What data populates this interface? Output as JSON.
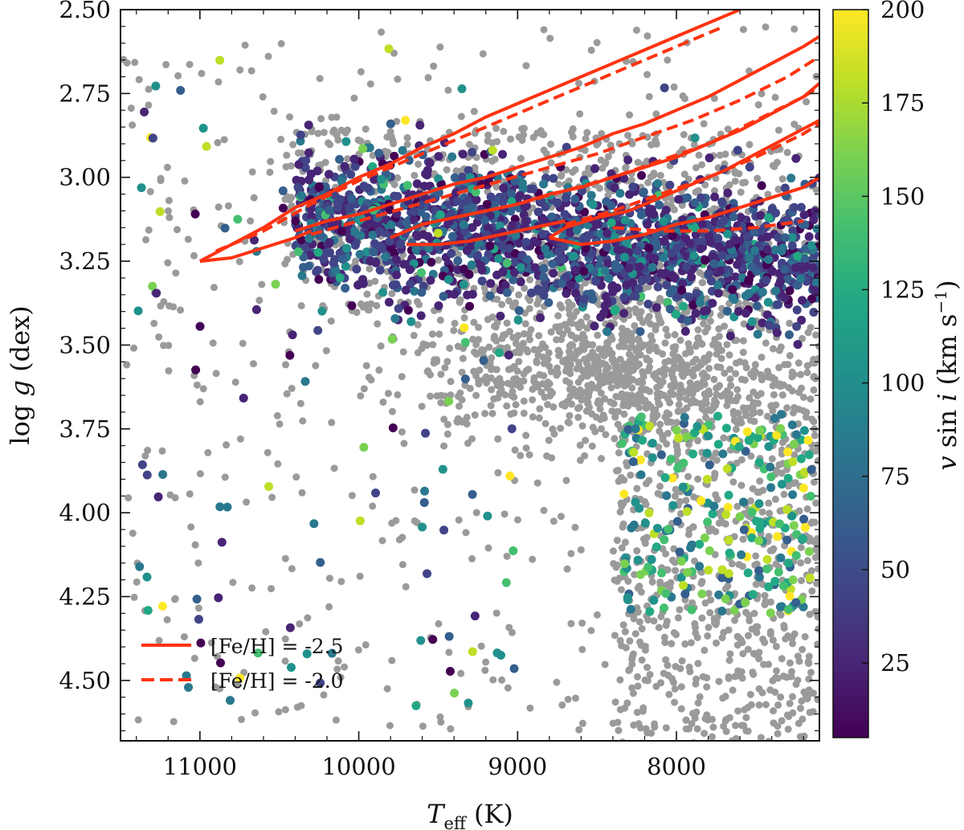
{
  "chart_data": {
    "type": "scatter",
    "xlabel": "T_eff (K)",
    "ylabel": "log g (dex)",
    "xlim": [
      11500,
      7100
    ],
    "ylim": [
      4.68,
      2.5
    ],
    "x_inverted": true,
    "y_inverted": true,
    "xticks": [
      11000,
      10000,
      9000,
      8000
    ],
    "xtick_labels": [
      "11000",
      "10000",
      "9000",
      "8000"
    ],
    "yticks": [
      2.5,
      2.75,
      3.0,
      3.25,
      3.5,
      3.75,
      4.0,
      4.25,
      4.5
    ],
    "ytick_labels": [
      "2.50",
      "2.75",
      "3.00",
      "3.25",
      "3.50",
      "3.75",
      "4.00",
      "4.25",
      "4.50"
    ],
    "colorbar": {
      "label": "v sin i (km s^-1)",
      "range": [
        5,
        200
      ],
      "ticks": [
        25,
        50,
        75,
        100,
        125,
        150,
        175,
        200
      ],
      "tick_labels": [
        "25",
        "50",
        "75",
        "100",
        "125",
        "150",
        "175",
        "200"
      ],
      "colormap": "viridis"
    },
    "colors": {
      "background_points": "#9a9a9a",
      "isochrone": "#ff3311"
    },
    "legend": {
      "placement": "bottom-left",
      "entries": [
        {
          "label": "[Fe/H] = -2.5",
          "style": "solid"
        },
        {
          "label": "[Fe/H] = -2.0",
          "style": "dashed"
        }
      ]
    },
    "series": [
      {
        "name": "isochrone [Fe/H] = -2.5 (1)",
        "style": "solid",
        "x": [
          11000,
          10800,
          10600,
          10400,
          10200,
          10000,
          9800,
          9600,
          9400,
          9200,
          9000,
          8800,
          8600,
          8400,
          8200,
          8000,
          7900,
          7800,
          7700,
          7600
        ],
        "y": [
          3.25,
          3.2,
          3.15,
          3.09,
          3.05,
          3.0,
          2.96,
          2.91,
          2.87,
          2.82,
          2.78,
          2.74,
          2.7,
          2.66,
          2.62,
          2.58,
          2.56,
          2.54,
          2.52,
          2.5
        ]
      },
      {
        "name": "isochrone [Fe/H] = -2.5 (1) lower",
        "style": "solid",
        "x": [
          11000,
          10800,
          10600,
          10400,
          10300
        ],
        "y": [
          3.25,
          3.24,
          3.21,
          3.18,
          3.16
        ]
      },
      {
        "name": "isochrone [Fe/H] = -2.5 (2)",
        "style": "solid",
        "x": [
          10400,
          10200,
          10000,
          9800,
          9600,
          9400,
          9200,
          9000,
          8800,
          8600,
          8400,
          8200,
          8000,
          7800,
          7600,
          7400,
          7200,
          7100
        ],
        "y": [
          3.16,
          3.13,
          3.11,
          3.08,
          3.05,
          3.02,
          3.0,
          2.97,
          2.94,
          2.91,
          2.87,
          2.84,
          2.8,
          2.76,
          2.71,
          2.66,
          2.61,
          2.58
        ]
      },
      {
        "name": "isochrone [Fe/H] = -2.5 (3)",
        "style": "solid",
        "x": [
          9800,
          9600,
          9400,
          9200,
          9000,
          8800,
          8600,
          8400,
          8200,
          8000,
          7800,
          7600,
          7400,
          7200,
          7100
        ],
        "y": [
          3.18,
          3.14,
          3.12,
          3.1,
          3.08,
          3.05,
          3.03,
          3.0,
          2.97,
          2.94,
          2.9,
          2.86,
          2.81,
          2.76,
          2.72
        ]
      },
      {
        "name": "isochrone [Fe/H] = -2.5 (3) lower",
        "style": "solid",
        "x": [
          9700,
          9500,
          9300,
          9100,
          8900,
          8700
        ],
        "y": [
          3.2,
          3.2,
          3.19,
          3.17,
          3.15,
          3.13
        ]
      },
      {
        "name": "isochrone [Fe/H] = -2.5 (4)",
        "style": "solid",
        "x": [
          8800,
          8700,
          8500,
          8300,
          8100,
          7900,
          7700,
          7500,
          7300,
          7100
        ],
        "y": [
          3.18,
          3.15,
          3.12,
          3.1,
          3.06,
          3.02,
          2.98,
          2.93,
          2.88,
          2.83
        ]
      },
      {
        "name": "isochrone [Fe/H] = -2.5 (4) lower",
        "style": "solid",
        "x": [
          8800,
          8600,
          8400,
          8200,
          8000,
          7800,
          7600,
          7400,
          7200,
          7100
        ],
        "y": [
          3.18,
          3.2,
          3.19,
          3.17,
          3.14,
          3.12,
          3.09,
          3.06,
          3.03,
          3.0
        ]
      },
      {
        "name": "isochrone [Fe/H] = -2.0 (1)",
        "style": "dashed",
        "x": [
          10900,
          10600,
          10300,
          10000,
          9700,
          9400,
          9100,
          8800,
          8500,
          8200,
          7900,
          7700
        ],
        "y": [
          3.22,
          3.16,
          3.08,
          3.01,
          2.95,
          2.89,
          2.83,
          2.77,
          2.71,
          2.65,
          2.59,
          2.55
        ]
      },
      {
        "name": "isochrone [Fe/H] = -2.0 (2)",
        "style": "dashed",
        "x": [
          10300,
          10000,
          9700,
          9400,
          9100,
          8800,
          8500,
          8200,
          7900,
          7600,
          7300,
          7100
        ],
        "y": [
          3.17,
          3.13,
          3.09,
          3.05,
          3.01,
          2.97,
          2.93,
          2.88,
          2.83,
          2.77,
          2.7,
          2.64
        ]
      },
      {
        "name": "isochrone [Fe/H] = -2.0 (3)",
        "style": "dashed",
        "x": [
          9600,
          9300,
          9000,
          8700,
          8400,
          8100,
          7800,
          7500,
          7200,
          7100
        ],
        "y": [
          3.14,
          3.11,
          3.08,
          3.04,
          3.0,
          2.95,
          2.9,
          2.83,
          2.76,
          2.73
        ]
      },
      {
        "name": "isochrone [Fe/H] = -2.0 (4)",
        "style": "dashed",
        "x": [
          8700,
          8400,
          8100,
          7800,
          7500,
          7200,
          7100
        ],
        "y": [
          3.14,
          3.1,
          3.05,
          3.0,
          2.94,
          2.87,
          2.84
        ]
      },
      {
        "name": "isochrone [Fe/H] = -2.0 (4) lower",
        "style": "dashed",
        "x": [
          8400,
          8100,
          7800,
          7500,
          7200
        ],
        "y": [
          3.15,
          3.16,
          3.16,
          3.15,
          3.13
        ]
      }
    ]
  }
}
